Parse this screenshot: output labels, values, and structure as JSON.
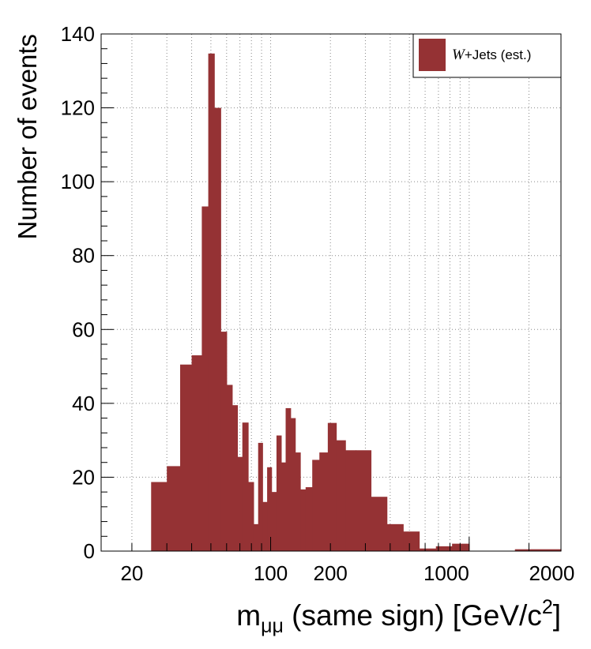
{
  "chart_data": {
    "type": "bar",
    "title": "",
    "xlabel": "m",
    "xlabel_sub": "μμ",
    "xlabel_rest": " (same sign) [GeV/c",
    "xlabel_sup": "2",
    "xlabel_close": "]",
    "ylabel": "Number of events",
    "x_scale": "log",
    "xlim": [
      14,
      2900
    ],
    "ylim": [
      0,
      140
    ],
    "x_tick_labels": [
      "20",
      "100",
      "200",
      "1000",
      "2000"
    ],
    "y_tick_labels": [
      "0",
      "20",
      "40",
      "60",
      "80",
      "100",
      "120",
      "140"
    ],
    "grid": true,
    "legend": {
      "position": "top-right",
      "entries": [
        {
          "label_italic": "W",
          "label_rest": "+Jets (est.)",
          "color": "#953234"
        }
      ]
    },
    "series": [
      {
        "name": "W+Jets (est.)",
        "color": "#953234",
        "bins": [
          {
            "x0": 25,
            "x1": 30,
            "value": 18.7
          },
          {
            "x0": 30,
            "x1": 35,
            "value": 23
          },
          {
            "x0": 35,
            "x1": 40,
            "value": 50.5
          },
          {
            "x0": 40,
            "x1": 45,
            "value": 53
          },
          {
            "x0": 45,
            "x1": 48.5,
            "value": 93.3
          },
          {
            "x0": 48.5,
            "x1": 52,
            "value": 134.7
          },
          {
            "x0": 52,
            "x1": 56,
            "value": 120
          },
          {
            "x0": 56,
            "x1": 60,
            "value": 59.4
          },
          {
            "x0": 60,
            "x1": 64,
            "value": 45
          },
          {
            "x0": 64,
            "x1": 68,
            "value": 39.5
          },
          {
            "x0": 68,
            "x1": 72,
            "value": 25.5
          },
          {
            "x0": 72,
            "x1": 77,
            "value": 34.8
          },
          {
            "x0": 77,
            "x1": 82,
            "value": 18.7
          },
          {
            "x0": 82,
            "x1": 86.5,
            "value": 7.3
          },
          {
            "x0": 86.5,
            "x1": 91,
            "value": 29.3
          },
          {
            "x0": 91,
            "x1": 96,
            "value": 13.3
          },
          {
            "x0": 96,
            "x1": 101,
            "value": 22.7
          },
          {
            "x0": 101,
            "x1": 107,
            "value": 16
          },
          {
            "x0": 107,
            "x1": 113,
            "value": 31.3
          },
          {
            "x0": 113,
            "x1": 119,
            "value": 24
          },
          {
            "x0": 119,
            "x1": 126,
            "value": 38.7
          },
          {
            "x0": 126,
            "x1": 133,
            "value": 36
          },
          {
            "x0": 133,
            "x1": 141,
            "value": 26.7
          },
          {
            "x0": 141,
            "x1": 150,
            "value": 16.7
          },
          {
            "x0": 150,
            "x1": 162,
            "value": 17.3
          },
          {
            "x0": 162,
            "x1": 176,
            "value": 24.7
          },
          {
            "x0": 176,
            "x1": 194,
            "value": 26.7
          },
          {
            "x0": 194,
            "x1": 214,
            "value": 34.7
          },
          {
            "x0": 214,
            "x1": 238,
            "value": 30
          },
          {
            "x0": 238,
            "x1": 268,
            "value": 27.3
          },
          {
            "x0": 268,
            "x1": 320,
            "value": 27.3
          },
          {
            "x0": 320,
            "x1": 385,
            "value": 14.7
          },
          {
            "x0": 385,
            "x1": 465,
            "value": 7.3
          },
          {
            "x0": 465,
            "x1": 560,
            "value": 5.3
          },
          {
            "x0": 560,
            "x1": 680,
            "value": 0.7
          },
          {
            "x0": 680,
            "x1": 820,
            "value": 1.3
          },
          {
            "x0": 820,
            "x1": 1000,
            "value": 2
          },
          {
            "x0": 1700,
            "x1": 2900,
            "value": 0.5
          }
        ]
      }
    ]
  }
}
